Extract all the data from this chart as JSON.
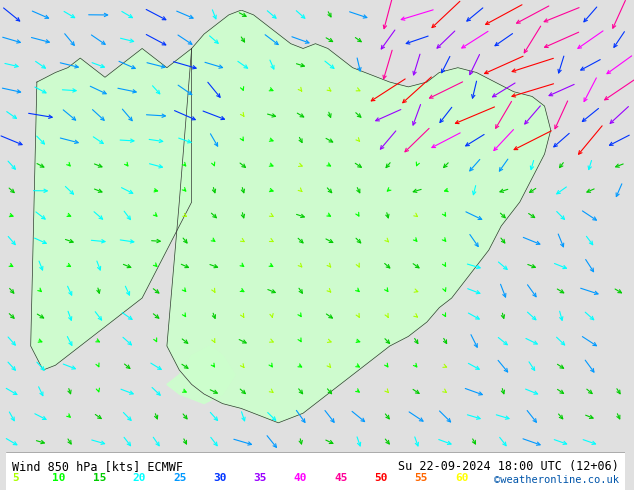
{
  "title_left": "Wind 850 hPa [kts] ECMWF",
  "title_right": "Su 22-09-2024 18:00 UTC (12+06)",
  "credit": "©weatheronline.co.uk",
  "legend_values": [
    5,
    10,
    15,
    20,
    25,
    30,
    35,
    40,
    45,
    50,
    55,
    60
  ],
  "legend_colors": [
    "#aaff00",
    "#00ff00",
    "#00cc00",
    "#00ffff",
    "#0099ff",
    "#0033ff",
    "#9900ff",
    "#ff00ff",
    "#ff0099",
    "#ff0000",
    "#ff6600",
    "#ffff00"
  ],
  "bg_color": "#e0e0e0",
  "land_color": "#ccffcc",
  "border_color": "#333333",
  "figsize": [
    6.34,
    4.9
  ],
  "dpi": 100
}
